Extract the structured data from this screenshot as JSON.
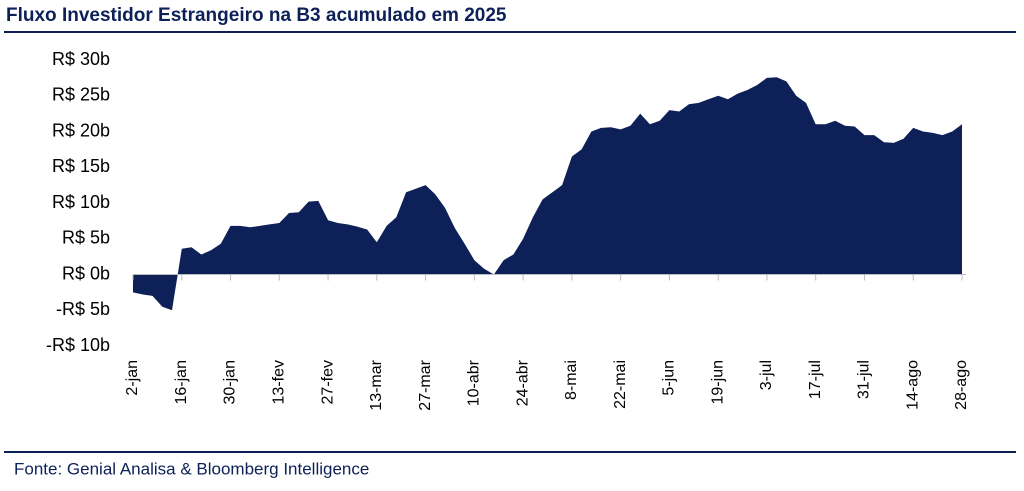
{
  "chart_data": {
    "type": "area",
    "title": "Fluxo Investidor Estrangeiro na B3 acumulado em 2025",
    "source": "Fonte: Genial Analisa & Bloomberg Intelligence",
    "color": "#0d2158",
    "categories": [
      "2-jan",
      null,
      null,
      null,
      null,
      "16-jan",
      null,
      null,
      null,
      null,
      "30-jan",
      null,
      null,
      null,
      null,
      "13-fev",
      null,
      null,
      null,
      null,
      "27-fev",
      null,
      null,
      null,
      null,
      "13-mar",
      null,
      null,
      null,
      null,
      "27-mar",
      null,
      null,
      null,
      null,
      "10-abr",
      null,
      null,
      null,
      null,
      "24-abr",
      null,
      null,
      null,
      null,
      "8-mai",
      null,
      null,
      null,
      null,
      "22-mai",
      null,
      null,
      null,
      null,
      "5-jun",
      null,
      null,
      null,
      null,
      "19-jun",
      null,
      null,
      null,
      null,
      "3-jul",
      null,
      null,
      null,
      null,
      "17-jul",
      null,
      null,
      null,
      null,
      "31-jul",
      null,
      null,
      null,
      null,
      "14-ago",
      null,
      null,
      null,
      null,
      "28-ago"
    ],
    "values": [
      -2.5,
      -2.8,
      -3.0,
      -4.5,
      -5.0,
      3.6,
      3.8,
      2.8,
      3.4,
      4.3,
      6.8,
      6.8,
      6.6,
      6.8,
      7.0,
      7.2,
      8.6,
      8.7,
      10.2,
      10.3,
      7.6,
      7.2,
      7.0,
      6.7,
      6.3,
      4.5,
      6.8,
      8.0,
      11.5,
      12.0,
      12.5,
      11.2,
      9.3,
      6.5,
      4.3,
      2.0,
      0.8,
      0,
      2.0,
      2.8,
      5.0,
      8.0,
      10.5,
      11.5,
      12.5,
      16.5,
      17.5,
      20.0,
      20.5,
      20.6,
      20.3,
      20.8,
      22.5,
      21.0,
      21.5,
      23.0,
      22.8,
      23.8,
      24.0,
      24.5,
      25.0,
      24.5,
      25.3,
      25.8,
      26.5,
      27.5,
      27.6,
      27.0,
      25.0,
      24.0,
      21.0,
      21.0,
      21.5,
      20.8,
      20.7,
      19.5,
      19.5,
      18.5,
      18.4,
      19.0,
      20.5,
      20.0,
      19.8,
      19.5,
      20.0,
      21.0
    ],
    "ylim": [
      -10,
      30
    ],
    "yticks": [
      {
        "value": -10,
        "label": "-R$ 10b"
      },
      {
        "value": -5,
        "label": "-R$ 5b"
      },
      {
        "value": 0,
        "label": "R$ 0b"
      },
      {
        "value": 5,
        "label": "R$ 5b"
      },
      {
        "value": 10,
        "label": "R$ 10b"
      },
      {
        "value": 15,
        "label": "R$ 15b"
      },
      {
        "value": 20,
        "label": "R$ 20b"
      },
      {
        "value": 25,
        "label": "R$ 25b"
      },
      {
        "value": 30,
        "label": "R$ 30b"
      }
    ]
  }
}
